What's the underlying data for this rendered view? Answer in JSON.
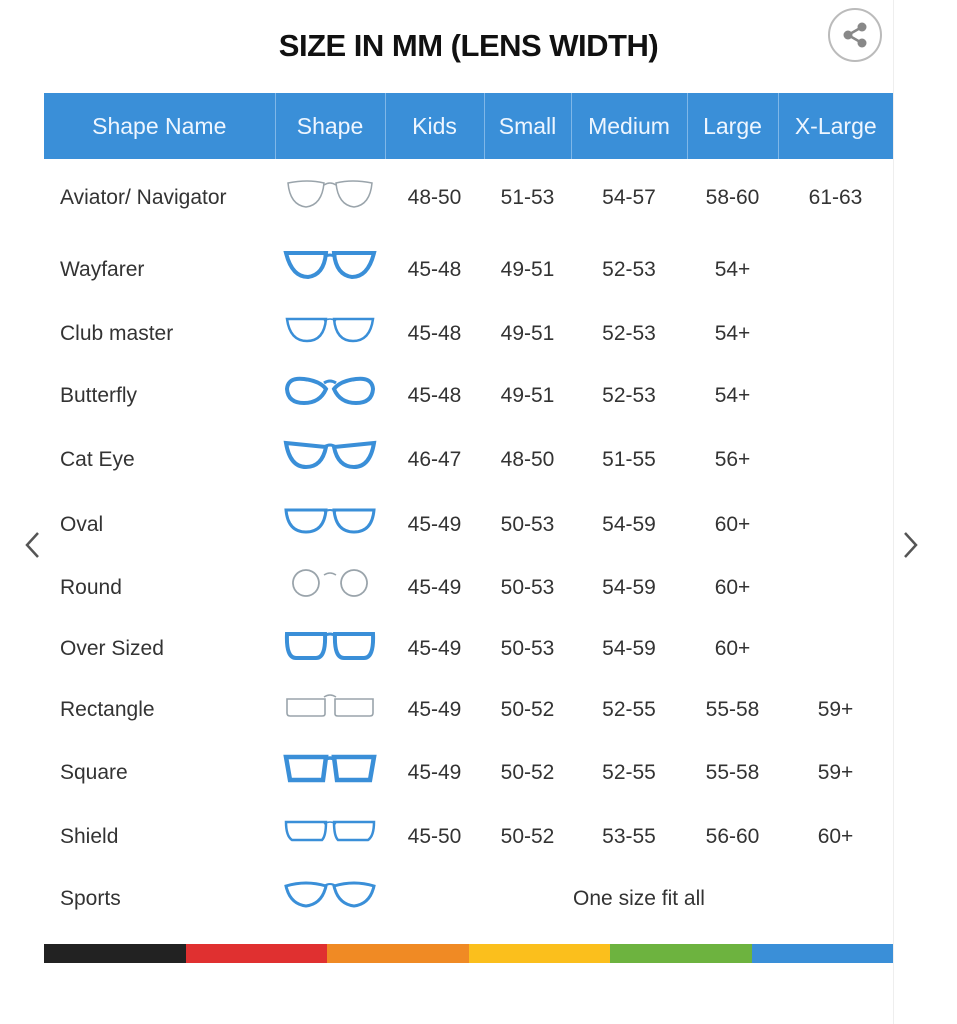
{
  "title": "SIZE IN MM (LENS WIDTH)",
  "share_icon": "share-icon",
  "columns": [
    "Shape Name",
    "Shape",
    "Kids",
    "Small",
    "Medium",
    "Large",
    "X-Large"
  ],
  "rows": [
    {
      "name": "Aviator/ Navigator",
      "shape": "aviator",
      "sizes": [
        "48-50",
        "51-53",
        "54-57",
        "58-60",
        "61-63"
      ]
    },
    {
      "name": "Wayfarer",
      "shape": "wayfarer",
      "sizes": [
        "45-48",
        "49-51",
        "52-53",
        "54+",
        ""
      ]
    },
    {
      "name": "Club master",
      "shape": "clubmaster",
      "sizes": [
        "45-48",
        "49-51",
        "52-53",
        "54+",
        ""
      ]
    },
    {
      "name": "Butterfly",
      "shape": "butterfly",
      "sizes": [
        "45-48",
        "49-51",
        "52-53",
        "54+",
        ""
      ]
    },
    {
      "name": "Cat Eye",
      "shape": "cateye",
      "sizes": [
        "46-47",
        "48-50",
        "51-55",
        "56+",
        ""
      ]
    },
    {
      "name": "Oval",
      "shape": "oval",
      "sizes": [
        "45-49",
        "50-53",
        "54-59",
        "60+",
        ""
      ]
    },
    {
      "name": "Round",
      "shape": "round",
      "sizes": [
        "45-49",
        "50-53",
        "54-59",
        "60+",
        ""
      ]
    },
    {
      "name": "Over Sized",
      "shape": "oversized",
      "sizes": [
        "45-49",
        "50-53",
        "54-59",
        "60+",
        ""
      ]
    },
    {
      "name": "Rectangle",
      "shape": "rectangle",
      "sizes": [
        "45-49",
        "50-52",
        "52-55",
        "55-58",
        "59+"
      ]
    },
    {
      "name": "Square",
      "shape": "square",
      "sizes": [
        "45-49",
        "50-52",
        "52-55",
        "55-58",
        "59+"
      ]
    },
    {
      "name": "Shield",
      "shape": "shield",
      "sizes": [
        "45-50",
        "50-52",
        "53-55",
        "56-60",
        "60+"
      ]
    },
    {
      "name": "Sports",
      "shape": "sports",
      "one_size": "One size fit all"
    }
  ],
  "colors": {
    "header": "#3a8fd8",
    "frame_blue": "#3a8fd8",
    "frame_gray": "#9aa4ab",
    "bar": [
      "#222222",
      "#e03030",
      "#f08a24",
      "#fbbf1c",
      "#6db33f",
      "#3a8fd8"
    ]
  },
  "nav": {
    "prev_icon": "chevron-left-icon",
    "next_icon": "chevron-right-icon"
  }
}
